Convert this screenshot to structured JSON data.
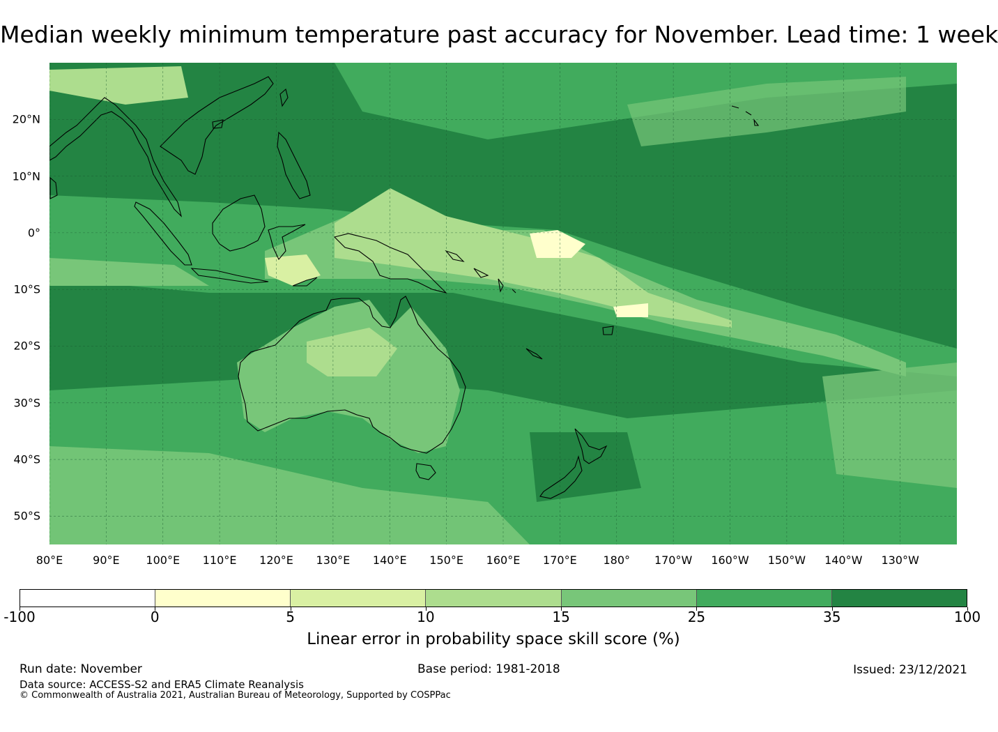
{
  "title": "Median weekly minimum temperature past accuracy for November. Lead time: 1 week",
  "map": {
    "lat_labels": [
      "20°N",
      "10°N",
      "0°",
      "10°S",
      "20°S",
      "30°S",
      "40°S",
      "50°S"
    ],
    "lat_values": [
      20,
      10,
      0,
      -10,
      -20,
      -30,
      -40,
      -50
    ],
    "lon_labels": [
      "80°E",
      "90°E",
      "100°E",
      "110°E",
      "120°E",
      "130°E",
      "140°E",
      "150°E",
      "160°E",
      "170°E",
      "180°",
      "170°W",
      "160°W",
      "150°W",
      "140°W",
      "130°W"
    ],
    "lon_values": [
      80,
      90,
      100,
      110,
      120,
      130,
      140,
      150,
      160,
      170,
      180,
      190,
      200,
      210,
      220,
      230
    ],
    "lat_range": [
      -55,
      30
    ],
    "lon_range": [
      80,
      240
    ],
    "land_color": "#41a65a",
    "ocean_base_color": "#238443"
  },
  "legend": {
    "colors": [
      "#ffffff",
      "#ffffcc",
      "#d9f0a3",
      "#addd8e",
      "#78c679",
      "#41ab5d",
      "#238443"
    ],
    "ticks": [
      "-100",
      "0",
      "5",
      "10",
      "15",
      "25",
      "35",
      "100"
    ],
    "label": "Linear error in probability space skill score (%)"
  },
  "footer": {
    "run_date": "Run date: November",
    "base_period": "Base period: 1981-2018",
    "issued": "Issued: 23/12/2021",
    "data_source": "Data source: ACCESS-S2 and ERA5 Climate Reanalysis",
    "copyright": "© Commonwealth of Australia 2021, Australian Bureau of Meteorology, Supported by COSPPac"
  }
}
